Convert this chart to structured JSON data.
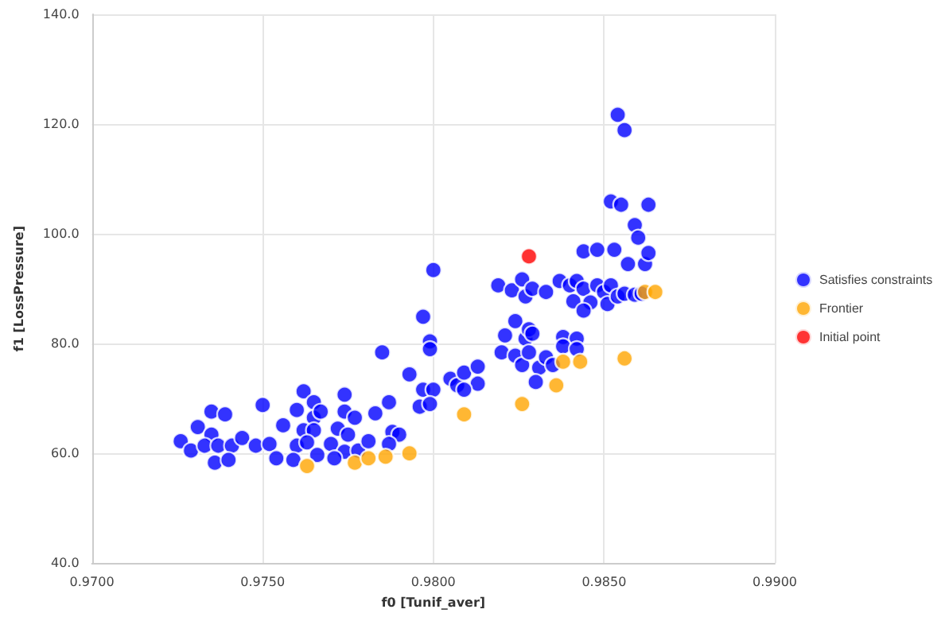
{
  "chart_data": {
    "type": "scatter",
    "xlabel": "f0 [Tunif_aver]",
    "ylabel": "f1 [LossPressure]",
    "xlim": [
      0.97,
      0.99
    ],
    "ylim": [
      40,
      140
    ],
    "xticks": [
      {
        "value": 0.97,
        "label": "0.9700"
      },
      {
        "value": 0.975,
        "label": "0.9750"
      },
      {
        "value": 0.98,
        "label": "0.9800"
      },
      {
        "value": 0.985,
        "label": "0.9850"
      },
      {
        "value": 0.99,
        "label": "0.9900"
      }
    ],
    "yticks": [
      {
        "value": 40,
        "label": "40.0"
      },
      {
        "value": 60,
        "label": "60.0"
      },
      {
        "value": 80,
        "label": "80.0"
      },
      {
        "value": 100,
        "label": "100.0"
      },
      {
        "value": 120,
        "label": "120.0"
      },
      {
        "value": 140,
        "label": "140.0"
      }
    ],
    "grid": true,
    "legend": "right",
    "marker": "circle",
    "series": [
      {
        "name": "Satisfies constraints",
        "color": "#0000ff",
        "x": [
          0.9726,
          0.9729,
          0.9731,
          0.9735,
          0.9739,
          0.9735,
          0.9733,
          0.9737,
          0.9741,
          0.9736,
          0.974,
          0.9744,
          0.975,
          0.9748,
          0.9752,
          0.9754,
          0.9756,
          0.976,
          0.9762,
          0.9765,
          0.9765,
          0.9767,
          0.9762,
          0.9765,
          0.976,
          0.9763,
          0.9759,
          0.977,
          0.9772,
          0.9774,
          0.9774,
          0.9777,
          0.9775,
          0.9774,
          0.9771,
          0.9778,
          0.9766,
          0.9781,
          0.9783,
          0.9787,
          0.9788,
          0.979,
          0.9787,
          0.9785,
          0.9793,
          0.9797,
          0.9799,
          0.9799,
          0.9797,
          0.98,
          0.9796,
          0.9799,
          0.9805,
          0.9807,
          0.9809,
          0.9813,
          0.9813,
          0.9809,
          0.98,
          0.9821,
          0.9824,
          0.9827,
          0.9828,
          0.982,
          0.9824,
          0.9826,
          0.9828,
          0.9831,
          0.983,
          0.9833,
          0.9854,
          0.9856,
          0.9852,
          0.9855,
          0.9863,
          0.9859,
          0.986,
          0.9844,
          0.9848,
          0.9853,
          0.9857,
          0.9862,
          0.9863,
          0.9819,
          0.9823,
          0.9826,
          0.9827,
          0.9829,
          0.9833,
          0.9837,
          0.984,
          0.9841,
          0.9842,
          0.9844,
          0.9846,
          0.9844,
          0.9848,
          0.985,
          0.9852,
          0.9851,
          0.9854,
          0.9856,
          0.9859,
          0.9861,
          0.9829,
          0.9835,
          0.9838,
          0.9842,
          0.9838,
          0.9842
        ],
        "values": [
          62.2,
          60.5,
          64.8,
          67.6,
          67.1,
          63.4,
          61.4,
          61.4,
          61.4,
          58.3,
          58.8,
          62.8,
          68.8,
          61.4,
          61.7,
          59.1,
          65.1,
          67.9,
          71.3,
          69.3,
          66.5,
          67.6,
          64.2,
          64.2,
          61.4,
          62.0,
          58.8,
          61.7,
          64.5,
          70.7,
          67.6,
          66.5,
          63.4,
          60.3,
          59.1,
          60.5,
          59.7,
          62.2,
          67.3,
          69.3,
          63.9,
          63.4,
          61.7,
          78.4,
          74.4,
          84.9,
          80.4,
          79.0,
          71.6,
          71.6,
          68.5,
          69.0,
          73.6,
          72.4,
          74.7,
          75.8,
          72.7,
          71.6,
          93.4,
          81.5,
          84.1,
          80.9,
          82.6,
          78.4,
          77.8,
          76.1,
          78.4,
          75.6,
          73.0,
          77.5,
          121.7,
          118.9,
          105.9,
          105.3,
          105.3,
          101.6,
          99.3,
          96.8,
          97.1,
          97.1,
          94.5,
          94.5,
          96.5,
          90.6,
          89.7,
          91.7,
          88.6,
          90.0,
          89.4,
          91.4,
          90.6,
          87.7,
          91.4,
          90.0,
          87.5,
          86.0,
          90.6,
          89.4,
          90.6,
          87.2,
          88.6,
          89.1,
          88.9,
          89.1,
          81.8,
          76.1,
          81.2,
          80.9,
          79.5,
          79.0
        ]
      },
      {
        "name": "Frontier",
        "color": "#ffa500",
        "x": [
          0.9763,
          0.9777,
          0.9781,
          0.9786,
          0.9793,
          0.9809,
          0.9826,
          0.9836,
          0.9838,
          0.9843,
          0.9856,
          0.9862,
          0.9865
        ],
        "values": [
          57.7,
          58.3,
          59.1,
          59.4,
          60.0,
          67.1,
          69.0,
          72.4,
          76.7,
          76.7,
          77.3,
          89.4,
          89.4
        ]
      },
      {
        "name": "Initial point",
        "color": "#ff0000",
        "x": [
          0.9828
        ],
        "values": [
          95.9
        ]
      }
    ]
  }
}
